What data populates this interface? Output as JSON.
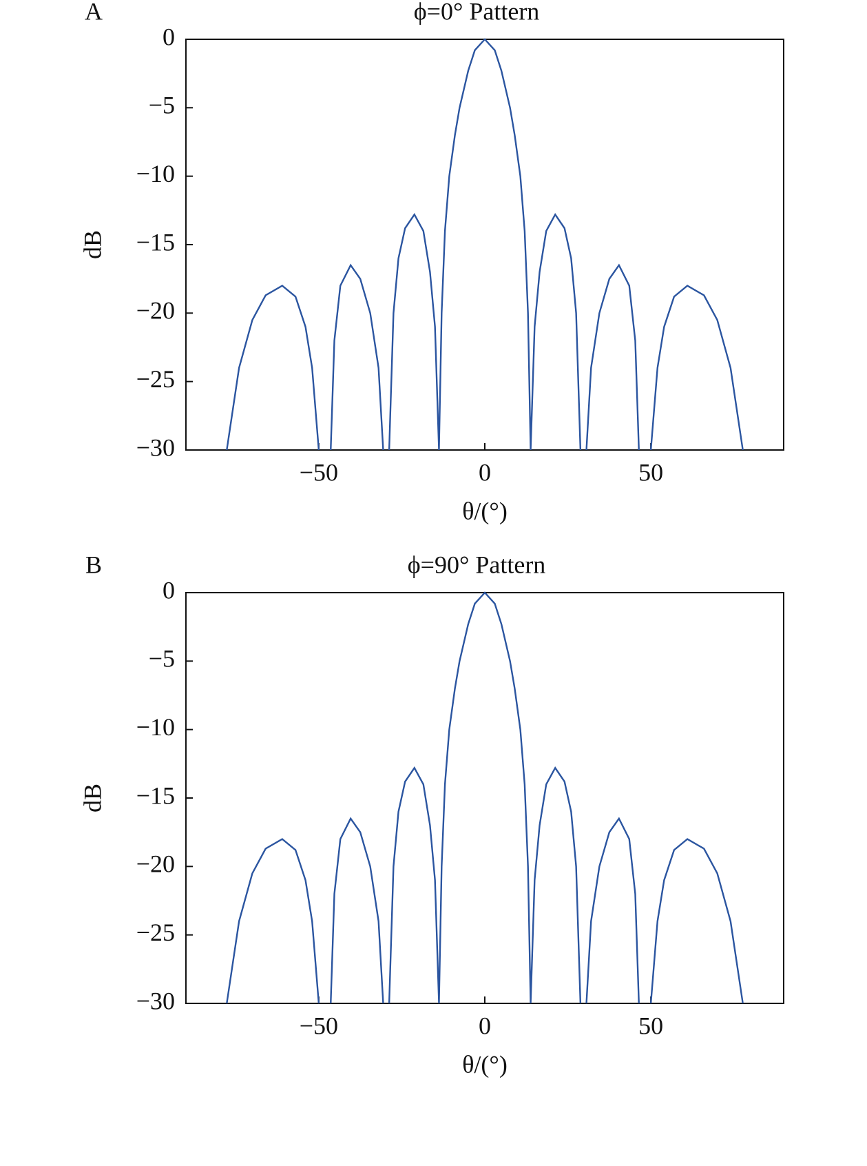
{
  "chart_data": [
    {
      "type": "line",
      "panel": "A",
      "title": "ϕ=0° Pattern",
      "xlabel": "θ/(°)",
      "ylabel": "dB",
      "xlim": [
        -90,
        90
      ],
      "ylim": [
        -30,
        0
      ],
      "xticks": [
        {
          "value": -50,
          "label": "−50"
        },
        0,
        50
      ],
      "yticks": [
        0,
        {
          "value": -5,
          "label": "−5"
        },
        {
          "value": -10,
          "label": "−10"
        },
        {
          "value": -15,
          "label": "−15"
        },
        {
          "value": -20,
          "label": "−20"
        },
        {
          "value": -25,
          "label": "−25"
        },
        {
          "value": -30,
          "label": "−30"
        }
      ],
      "x": [
        -77.7,
        -74,
        -70,
        -66,
        -61,
        -57,
        -54,
        -52,
        -50,
        -48,
        -46.4,
        -45.3,
        -43.5,
        -40.4,
        -37.5,
        -34.5,
        -32,
        -30.6,
        -29.7,
        -28.8,
        -27.5,
        -26,
        -24,
        -21.2,
        -18.5,
        -16.5,
        -15,
        -13.8,
        -13,
        -12,
        -10.7,
        -9,
        -7.6,
        -5,
        -3,
        0,
        3,
        5,
        7.6,
        9,
        10.7,
        12,
        13,
        13.8,
        15,
        16.5,
        18.5,
        21.2,
        24,
        26,
        27.5,
        28.8,
        29.7,
        30.6,
        32,
        34.5,
        37.5,
        40.4,
        43.5,
        45.3,
        46.4,
        48,
        50,
        52,
        54,
        57,
        61,
        66,
        70,
        74,
        77.7
      ],
      "series": [
        {
          "color": "#2b55a0",
          "values": [
            -30,
            -24,
            -20.5,
            -18.7,
            -18,
            -18.8,
            -21,
            -24,
            -30,
            null,
            -30,
            -22,
            -18,
            -16.5,
            -17.5,
            -20,
            -24,
            -30,
            null,
            -30,
            -20,
            -16,
            -13.8,
            -12.8,
            -14,
            -17,
            -21,
            -30,
            -20,
            -14,
            -10,
            -7,
            -5,
            -2.3,
            -0.8,
            0,
            -0.8,
            -2.3,
            -5,
            -7,
            -10,
            -14,
            -20,
            -30,
            -21,
            -17,
            -14,
            -12.8,
            -13.8,
            -16,
            -20,
            -30,
            null,
            -30,
            -24,
            -20,
            -17.5,
            -16.5,
            -18,
            -22,
            -30,
            null,
            -30,
            -24,
            -21,
            -18.8,
            -18,
            -18.7,
            -20.5,
            -24,
            -30
          ]
        }
      ]
    },
    {
      "type": "line",
      "panel": "B",
      "title": "ϕ=90° Pattern",
      "xlabel": "θ/(°)",
      "ylabel": "dB",
      "xlim": [
        -90,
        90
      ],
      "ylim": [
        -30,
        0
      ],
      "xticks": [
        {
          "value": -50,
          "label": "−50"
        },
        0,
        50
      ],
      "yticks": [
        0,
        {
          "value": -5,
          "label": "−5"
        },
        {
          "value": -10,
          "label": "−10"
        },
        {
          "value": -15,
          "label": "−15"
        },
        {
          "value": -20,
          "label": "−20"
        },
        {
          "value": -25,
          "label": "−25"
        },
        {
          "value": -30,
          "label": "−30"
        }
      ],
      "x": [
        -77.7,
        -74,
        -70,
        -66,
        -61,
        -57,
        -54,
        -52,
        -50,
        -48,
        -46.4,
        -45.3,
        -43.5,
        -40.4,
        -37.5,
        -34.5,
        -32,
        -30.6,
        -29.7,
        -28.8,
        -27.5,
        -26,
        -24,
        -21.2,
        -18.5,
        -16.5,
        -15,
        -13.8,
        -13,
        -12,
        -10.7,
        -9,
        -7.6,
        -5,
        -3,
        0,
        3,
        5,
        7.6,
        9,
        10.7,
        12,
        13,
        13.8,
        15,
        16.5,
        18.5,
        21.2,
        24,
        26,
        27.5,
        28.8,
        29.7,
        30.6,
        32,
        34.5,
        37.5,
        40.4,
        43.5,
        45.3,
        46.4,
        48,
        50,
        52,
        54,
        57,
        61,
        66,
        70,
        74,
        77.7
      ],
      "series": [
        {
          "color": "#2b55a0",
          "values": [
            -30,
            -24,
            -20.5,
            -18.7,
            -18,
            -18.8,
            -21,
            -24,
            -30,
            null,
            -30,
            -22,
            -18,
            -16.5,
            -17.5,
            -20,
            -24,
            -30,
            null,
            -30,
            -20,
            -16,
            -13.8,
            -12.8,
            -14,
            -17,
            -21,
            -30,
            -20,
            -14,
            -10,
            -7,
            -5,
            -2.3,
            -0.8,
            0,
            -0.8,
            -2.3,
            -5,
            -7,
            -10,
            -14,
            -20,
            -30,
            -21,
            -17,
            -14,
            -12.8,
            -13.8,
            -16,
            -20,
            -30,
            null,
            -30,
            -24,
            -20,
            -17.5,
            -16.5,
            -18,
            -22,
            -30,
            null,
            -30,
            -24,
            -21,
            -18.8,
            -18,
            -18.7,
            -20.5,
            -24,
            -30
          ]
        }
      ]
    }
  ]
}
